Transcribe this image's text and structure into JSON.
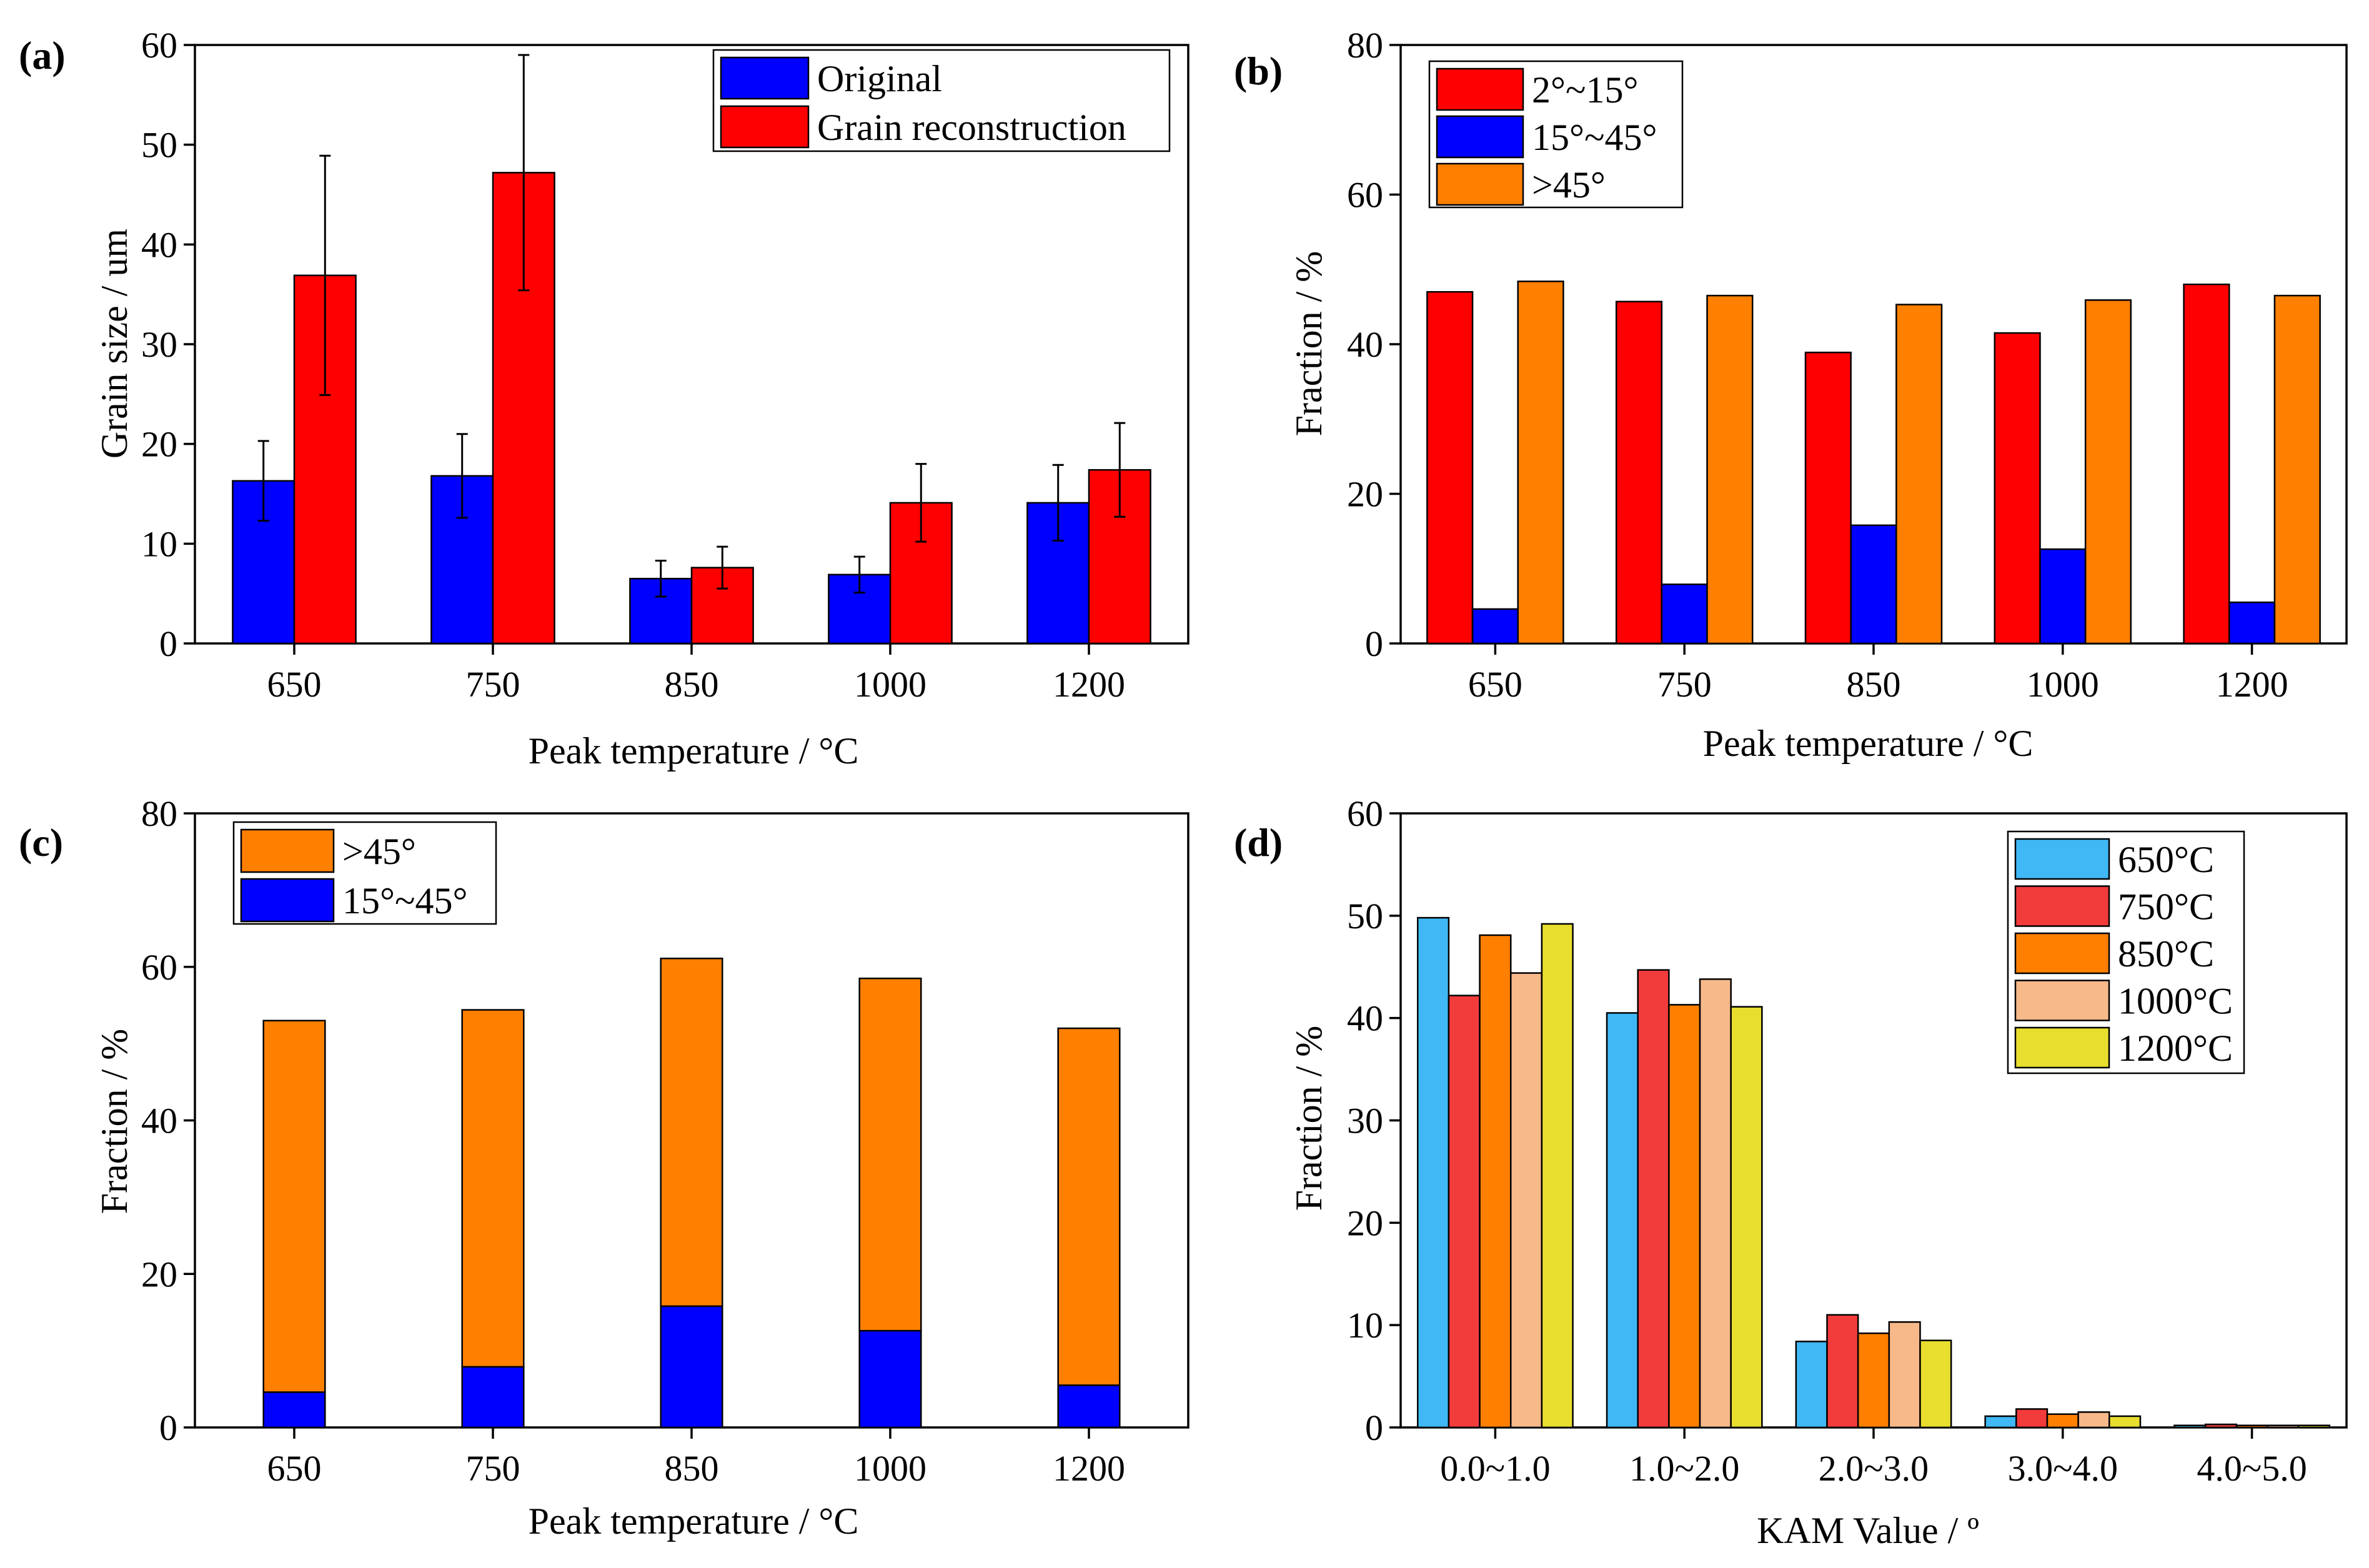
{
  "colors": {
    "blue": "#0000FF",
    "red": "#FF0000",
    "orange": "#FF7F00",
    "light_blue": "#3FB8F5",
    "light_red": "#F23B3B",
    "peach": "#F7B98A",
    "yellow": "#E8DE2E"
  },
  "chart_data": [
    {
      "panel": "(a)",
      "type": "bar",
      "title": "",
      "xlabel": "Peak temperature / °C",
      "ylabel": "Grain size / um",
      "categories": [
        "650",
        "750",
        "850",
        "1000",
        "1200"
      ],
      "ylim": [
        0,
        60
      ],
      "yticks": [
        "0",
        "10",
        "20",
        "30",
        "40",
        "50",
        "60"
      ],
      "grid": false,
      "legend_position": "top-right",
      "series": [
        {
          "name": "Original",
          "color": "#0000FF",
          "values": [
            16.3,
            16.8,
            6.5,
            6.9,
            14.1
          ],
          "errors": [
            4.0,
            4.2,
            1.8,
            1.8,
            3.8
          ]
        },
        {
          "name": "Grain reconstruction",
          "color": "#FF0000",
          "values": [
            36.9,
            47.2,
            7.6,
            14.1,
            17.4
          ],
          "errors": [
            12.0,
            11.8,
            2.1,
            3.9,
            4.7
          ]
        }
      ]
    },
    {
      "panel": "(b)",
      "type": "bar",
      "title": "",
      "xlabel": "Peak temperature / °C",
      "ylabel": "Fraction / %",
      "categories": [
        "650",
        "750",
        "850",
        "1000",
        "1200"
      ],
      "ylim": [
        0,
        80
      ],
      "yticks": [
        "0",
        "20",
        "40",
        "60",
        "80"
      ],
      "grid": false,
      "legend_position": "top-left",
      "series": [
        {
          "name": "2°~15°",
          "color": "#FF0000",
          "values": [
            47.0,
            45.7,
            38.9,
            41.5,
            48.0
          ]
        },
        {
          "name": "15°~45°",
          "color": "#0000FF",
          "values": [
            4.6,
            7.9,
            15.8,
            12.6,
            5.5
          ]
        },
        {
          "name": ">45°",
          "color": "#FF7F00",
          "values": [
            48.4,
            46.5,
            45.3,
            45.9,
            46.5
          ]
        }
      ]
    },
    {
      "panel": "(c)",
      "type": "bar",
      "stacked": true,
      "title": "",
      "xlabel": "Peak temperature / °C",
      "ylabel": "Fraction / %",
      "categories": [
        "650",
        "750",
        "850",
        "1000",
        "1200"
      ],
      "ylim": [
        0,
        80
      ],
      "yticks": [
        "0",
        "20",
        "40",
        "60",
        "80"
      ],
      "grid": false,
      "legend_position": "top-left",
      "series": [
        {
          "name": ">45°",
          "color": "#FF7F00",
          "values": [
            48.4,
            46.5,
            45.3,
            45.9,
            46.5
          ]
        },
        {
          "name": "15°~45°",
          "color": "#0000FF",
          "values": [
            4.6,
            7.9,
            15.8,
            12.6,
            5.5
          ]
        }
      ]
    },
    {
      "panel": "(d)",
      "type": "bar",
      "title": "",
      "xlabel": "KAM Value / º",
      "ylabel": "Fraction / %",
      "categories": [
        "0.0~1.0",
        "1.0~2.0",
        "2.0~3.0",
        "3.0~4.0",
        "4.0~5.0"
      ],
      "ylim": [
        0,
        60
      ],
      "yticks": [
        "0",
        "10",
        "20",
        "30",
        "40",
        "50",
        "60"
      ],
      "grid": false,
      "legend_position": "top-right",
      "series": [
        {
          "name": "650°C",
          "color": "#3FB8F5",
          "values": [
            49.8,
            40.5,
            8.4,
            1.1,
            0.2
          ]
        },
        {
          "name": "750°C",
          "color": "#F23B3B",
          "values": [
            42.2,
            44.7,
            11.0,
            1.8,
            0.3
          ]
        },
        {
          "name": "850°C",
          "color": "#FF7F00",
          "values": [
            48.1,
            41.3,
            9.2,
            1.3,
            0.2
          ]
        },
        {
          "name": "1000°C",
          "color": "#F7B98A",
          "values": [
            44.4,
            43.8,
            10.3,
            1.5,
            0.2
          ]
        },
        {
          "name": "1200°C",
          "color": "#E8DE2E",
          "values": [
            49.2,
            41.1,
            8.5,
            1.1,
            0.2
          ]
        }
      ]
    }
  ]
}
